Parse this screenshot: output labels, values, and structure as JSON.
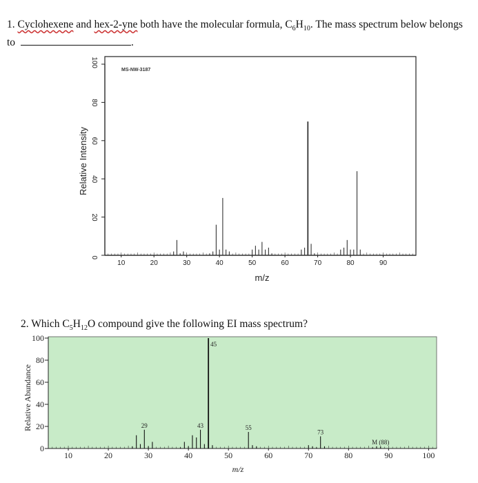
{
  "q1": {
    "number": "1.",
    "compound_a": "Cyclohexene",
    "and": "and",
    "compound_b": "hex-2-yne",
    "text_mid": "both have the molecular formula, C",
    "f_c": "6",
    "f_h": "H",
    "f_n": "10",
    "text_end": ". The mass spectrum below belongs to",
    "blank_end": "."
  },
  "q2": {
    "number": "2.",
    "text_a": "Which C",
    "c": "5",
    "h": "H",
    "hn": "12",
    "o": "O compound give the following EI mass spectrum?"
  },
  "chart_data": [
    {
      "type": "bar",
      "title": "",
      "stamp": "MS-NW-3187",
      "xlabel": "m/z",
      "ylabel": "Relative Intensity",
      "xlim": [
        5,
        100
      ],
      "ylim": [
        0,
        100
      ],
      "xticks": [
        10,
        20,
        30,
        40,
        50,
        60,
        70,
        80,
        90
      ],
      "yticks": [
        0,
        20,
        40,
        60,
        80,
        100
      ],
      "background": "#ffffff",
      "color": "#333333",
      "peaks": [
        [
          26,
          2
        ],
        [
          27,
          8
        ],
        [
          28,
          1
        ],
        [
          29,
          2
        ],
        [
          37,
          1
        ],
        [
          38,
          2
        ],
        [
          39,
          16
        ],
        [
          40,
          3
        ],
        [
          41,
          30
        ],
        [
          42,
          3
        ],
        [
          43,
          2
        ],
        [
          50,
          3
        ],
        [
          51,
          5
        ],
        [
          52,
          3
        ],
        [
          53,
          7
        ],
        [
          54,
          3
        ],
        [
          55,
          4
        ],
        [
          56,
          1
        ],
        [
          65,
          3
        ],
        [
          66,
          4
        ],
        [
          67,
          70
        ],
        [
          68,
          6
        ],
        [
          69,
          1
        ],
        [
          77,
          3
        ],
        [
          78,
          4
        ],
        [
          79,
          8
        ],
        [
          80,
          3
        ],
        [
          81,
          3
        ],
        [
          82,
          44
        ],
        [
          83,
          3
        ]
      ]
    },
    {
      "type": "bar",
      "title": "",
      "xlabel": "m/z",
      "ylabel": "Relative Abundance",
      "xlim": [
        5,
        102
      ],
      "ylim": [
        0,
        100
      ],
      "xticks": [
        10,
        20,
        30,
        40,
        50,
        60,
        70,
        80,
        90,
        100
      ],
      "yticks": [
        0,
        20,
        40,
        60,
        80,
        100
      ],
      "background": "#c8ebc8",
      "color": "#111111",
      "peak_labels": [
        {
          "mz": 29,
          "label": "29"
        },
        {
          "mz": 43,
          "label": "43"
        },
        {
          "mz": 45,
          "label": "45"
        },
        {
          "mz": 55,
          "label": "55"
        },
        {
          "mz": 73,
          "label": "73"
        },
        {
          "mz": 88,
          "label": "M (88)"
        }
      ],
      "peaks": [
        [
          26,
          2
        ],
        [
          27,
          12
        ],
        [
          28,
          4
        ],
        [
          29,
          17
        ],
        [
          30,
          2
        ],
        [
          31,
          6
        ],
        [
          38,
          1
        ],
        [
          39,
          6
        ],
        [
          40,
          2
        ],
        [
          41,
          12
        ],
        [
          42,
          10
        ],
        [
          43,
          17
        ],
        [
          44,
          4
        ],
        [
          45,
          100
        ],
        [
          46,
          3
        ],
        [
          55,
          15
        ],
        [
          56,
          3
        ],
        [
          57,
          2
        ],
        [
          70,
          3
        ],
        [
          71,
          2
        ],
        [
          72,
          1
        ],
        [
          73,
          11
        ],
        [
          74,
          2
        ],
        [
          86,
          1
        ],
        [
          87,
          2
        ],
        [
          88,
          2
        ]
      ]
    }
  ]
}
